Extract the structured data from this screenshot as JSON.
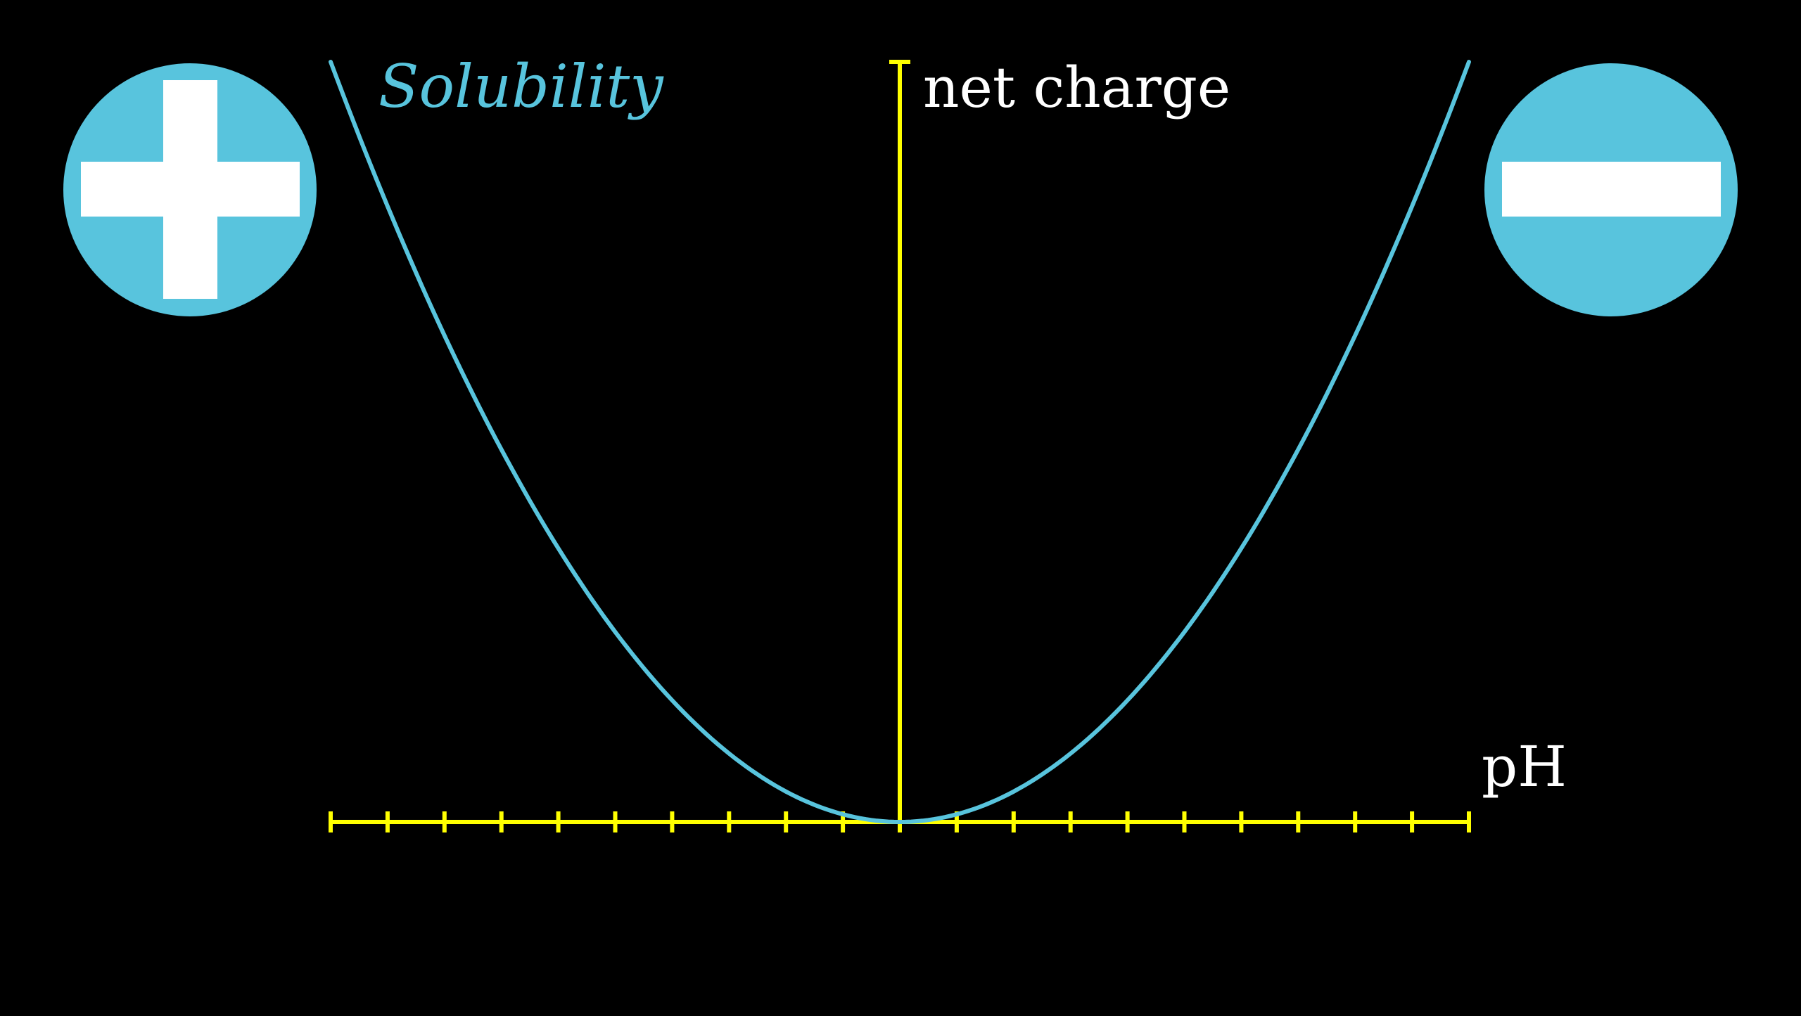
{
  "colors": {
    "background": "#000000",
    "axis": "#ffff00",
    "curve": "#58c4dd",
    "badge_fill": "#58c4dd",
    "badge_symbol": "#ffffff",
    "text": "#ffffff"
  },
  "labels": {
    "y_axis": "net charge",
    "x_axis": "pH",
    "curve": "Solubility"
  },
  "badges": {
    "left": {
      "symbol": "plus",
      "icon": "plus-icon"
    },
    "right": {
      "symbol": "minus",
      "icon": "minus-icon"
    }
  },
  "chart_data": {
    "type": "line",
    "x_tick_count": 21,
    "curve_shape": "parabola with minimum at the y-axis on the x-axis",
    "series": [
      {
        "name": "Solubility"
      }
    ],
    "xlabel": "pH",
    "ylabel": "net charge",
    "grid": false,
    "legend": "none"
  }
}
